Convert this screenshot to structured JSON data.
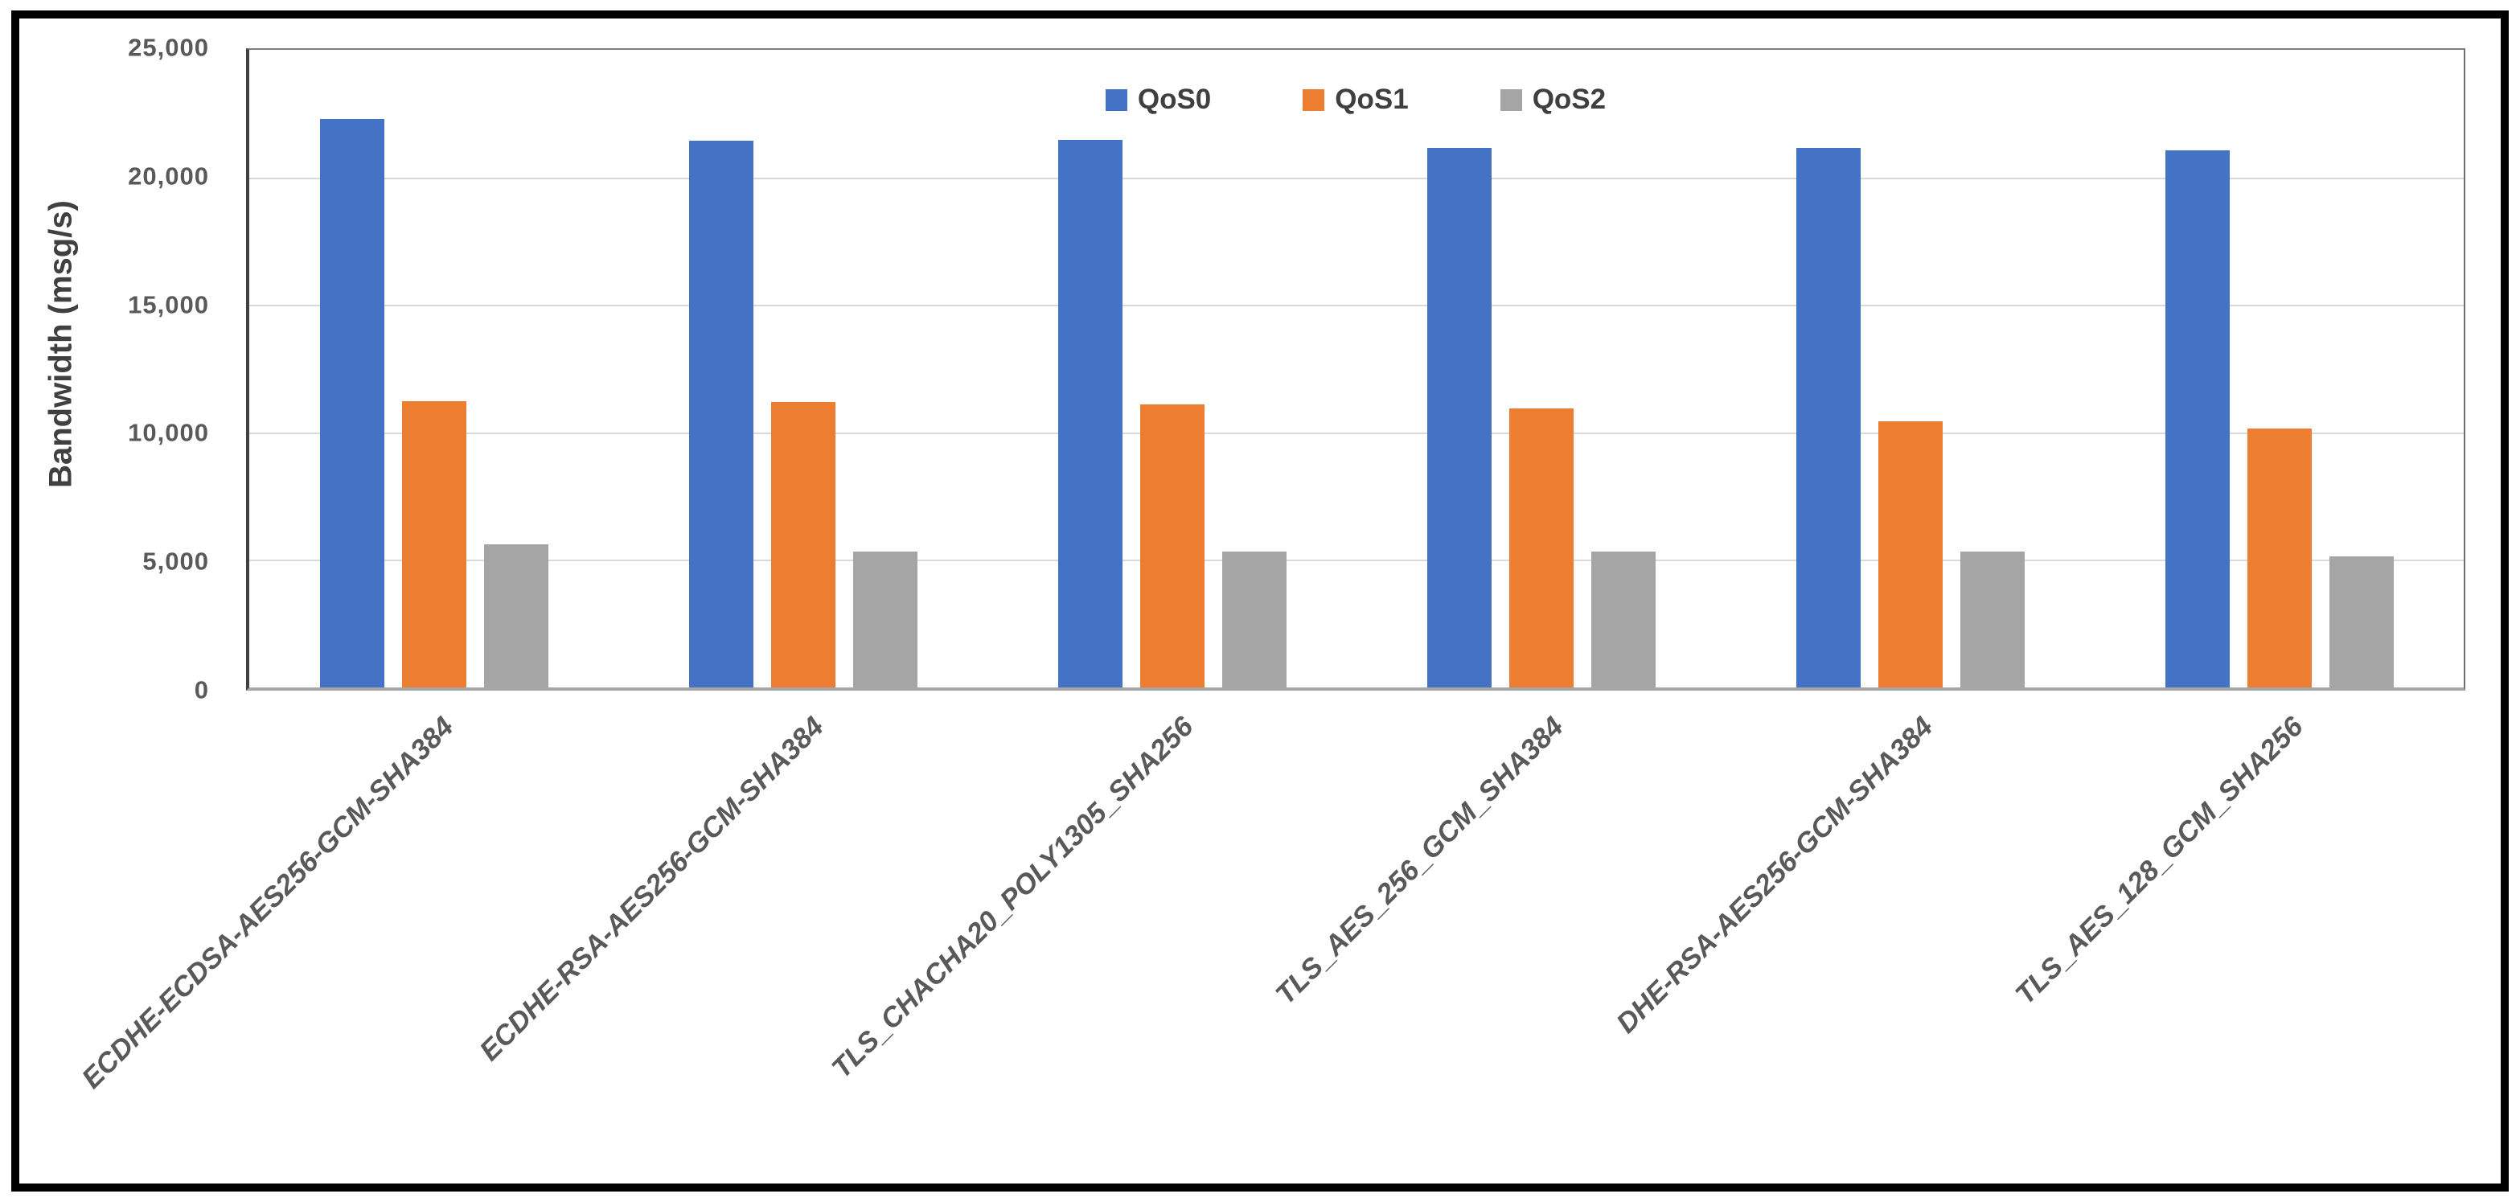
{
  "chart_data": {
    "type": "bar",
    "title": "",
    "ylabel": "Bandwidth (msg/s)",
    "xlabel": "",
    "ylim": [
      0,
      25000
    ],
    "yticks": [
      0,
      5000,
      10000,
      15000,
      20000,
      25000
    ],
    "ytick_labels": [
      "0",
      "5,000",
      "10,000",
      "15,000",
      "20,000",
      "25,000"
    ],
    "grid": true,
    "legend_position": "top-center-inside-plot",
    "categories": [
      "ECDHE-ECDSA-AES256-GCM-SHA384",
      "ECDHE-RSA-AES256-GCM-SHA384",
      "TLS_CHACHA20_POLY1305_SHA256",
      "TLS_AES_256_GCM_SHA384",
      "DHE-RSA-AES256-GCM-SHA384",
      "TLS_AES_128_GCM_SHA256"
    ],
    "series": [
      {
        "name": "QoS0",
        "color": "#4472C4",
        "values": [
          22280,
          21440,
          21470,
          21170,
          21140,
          21050
        ]
      },
      {
        "name": "QoS1",
        "color": "#ED7D31",
        "values": [
          11220,
          11190,
          11090,
          10930,
          10450,
          10160
        ]
      },
      {
        "name": "QoS2",
        "color": "#A5A5A5",
        "values": [
          5610,
          5340,
          5340,
          5340,
          5340,
          5150
        ]
      }
    ]
  },
  "styles": {
    "grid_color": "#D9D9D9",
    "axis_text_color": "#595959",
    "legend_text_color": "#3F3F3F",
    "frame_color": "#000000"
  }
}
